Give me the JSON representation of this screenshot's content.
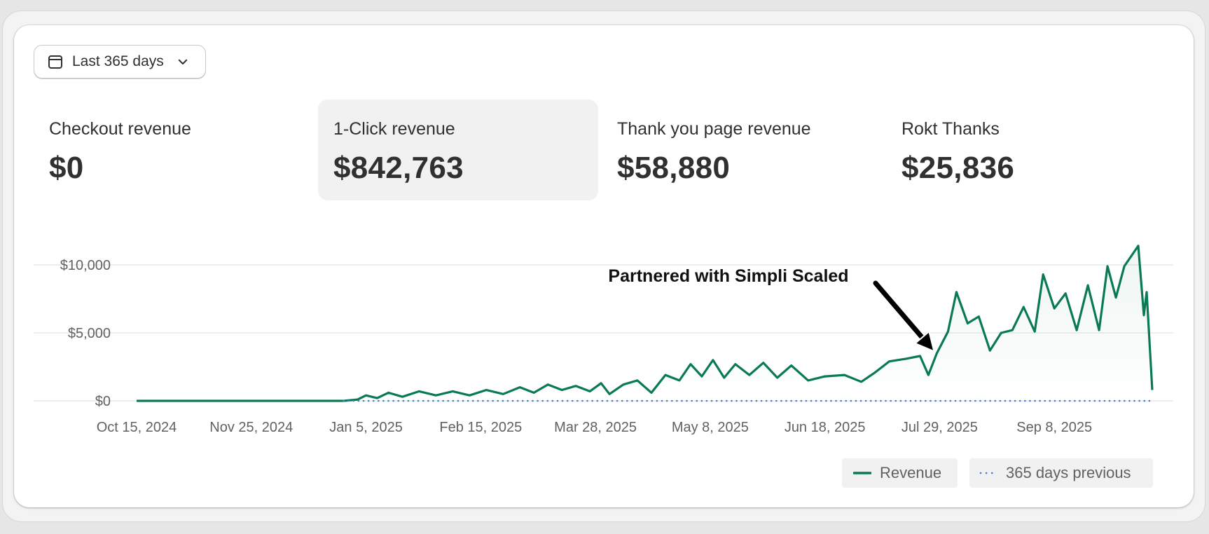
{
  "date_range": {
    "label": "Last 365 days",
    "calendar_icon": "calendar-icon",
    "chevron_icon": "chevron-down-icon"
  },
  "metrics": [
    {
      "label": "Checkout revenue",
      "value": "$0"
    },
    {
      "label": "1-Click revenue",
      "value": "$842,763",
      "selected": true
    },
    {
      "label": "Thank you page revenue",
      "value": "$58,880"
    },
    {
      "label": "Rokt Thanks",
      "value": "$25,836"
    }
  ],
  "legend": {
    "revenue_label": "Revenue",
    "previous_label": "365 days previous"
  },
  "colors": {
    "revenue": "#0a7a55",
    "previous": "#4a7bd8",
    "grid": "#e3e3e3",
    "axis_text": "#616161"
  },
  "chart_data": {
    "type": "line",
    "title": "",
    "xlabel": "",
    "ylabel": "",
    "x_range": [
      "2024-10-15",
      "2025-10-13"
    ],
    "ylim": [
      0,
      11500
    ],
    "y_ticks": [
      {
        "value": 0,
        "label": "$0"
      },
      {
        "value": 5000,
        "label": "$5,000"
      },
      {
        "value": 10000,
        "label": "$10,000"
      }
    ],
    "x_ticks": [
      {
        "date": "2024-10-15",
        "label": "Oct 15, 2024"
      },
      {
        "date": "2024-11-25",
        "label": "Nov 25, 2024"
      },
      {
        "date": "2025-01-05",
        "label": "Jan 5, 2025"
      },
      {
        "date": "2025-02-15",
        "label": "Feb 15, 2025"
      },
      {
        "date": "2025-03-28",
        "label": "Mar 28, 2025"
      },
      {
        "date": "2025-05-08",
        "label": "May 8, 2025"
      },
      {
        "date": "2025-06-18",
        "label": "Jun 18, 2025"
      },
      {
        "date": "2025-07-29",
        "label": "Jul 29, 2025"
      },
      {
        "date": "2025-09-08",
        "label": "Sep 8, 2025"
      }
    ],
    "grid": true,
    "legend_position": "bottom-right",
    "series": [
      {
        "name": "Revenue",
        "style": "solid",
        "points": [
          [
            "2024-10-15",
            0
          ],
          [
            "2024-12-28",
            0
          ],
          [
            "2025-01-02",
            100
          ],
          [
            "2025-01-05",
            400
          ],
          [
            "2025-01-09",
            200
          ],
          [
            "2025-01-13",
            600
          ],
          [
            "2025-01-18",
            300
          ],
          [
            "2025-01-24",
            700
          ],
          [
            "2025-01-30",
            400
          ],
          [
            "2025-02-05",
            700
          ],
          [
            "2025-02-11",
            400
          ],
          [
            "2025-02-17",
            800
          ],
          [
            "2025-02-23",
            500
          ],
          [
            "2025-03-01",
            1000
          ],
          [
            "2025-03-06",
            600
          ],
          [
            "2025-03-11",
            1200
          ],
          [
            "2025-03-16",
            800
          ],
          [
            "2025-03-21",
            1100
          ],
          [
            "2025-03-26",
            700
          ],
          [
            "2025-03-30",
            1300
          ],
          [
            "2025-04-02",
            500
          ],
          [
            "2025-04-07",
            1200
          ],
          [
            "2025-04-12",
            1500
          ],
          [
            "2025-04-17",
            600
          ],
          [
            "2025-04-22",
            1900
          ],
          [
            "2025-04-27",
            1500
          ],
          [
            "2025-05-01",
            2700
          ],
          [
            "2025-05-05",
            1800
          ],
          [
            "2025-05-09",
            3000
          ],
          [
            "2025-05-13",
            1700
          ],
          [
            "2025-05-17",
            2700
          ],
          [
            "2025-05-22",
            1900
          ],
          [
            "2025-05-27",
            2800
          ],
          [
            "2025-06-01",
            1700
          ],
          [
            "2025-06-06",
            2600
          ],
          [
            "2025-06-12",
            1500
          ],
          [
            "2025-06-18",
            1800
          ],
          [
            "2025-06-25",
            1900
          ],
          [
            "2025-07-01",
            1400
          ],
          [
            "2025-07-06",
            2100
          ],
          [
            "2025-07-11",
            2900
          ],
          [
            "2025-07-17",
            3100
          ],
          [
            "2025-07-22",
            3300
          ],
          [
            "2025-07-25",
            1900
          ],
          [
            "2025-07-28",
            3500
          ],
          [
            "2025-08-01",
            5100
          ],
          [
            "2025-08-04",
            8000
          ],
          [
            "2025-08-08",
            5700
          ],
          [
            "2025-08-12",
            6200
          ],
          [
            "2025-08-16",
            3700
          ],
          [
            "2025-08-20",
            5000
          ],
          [
            "2025-08-24",
            5200
          ],
          [
            "2025-08-28",
            6900
          ],
          [
            "2025-09-01",
            5100
          ],
          [
            "2025-09-04",
            9300
          ],
          [
            "2025-09-08",
            6800
          ],
          [
            "2025-09-12",
            7900
          ],
          [
            "2025-09-16",
            5200
          ],
          [
            "2025-09-20",
            8500
          ],
          [
            "2025-09-24",
            5200
          ],
          [
            "2025-09-27",
            9900
          ],
          [
            "2025-09-30",
            7600
          ],
          [
            "2025-10-03",
            9900
          ],
          [
            "2025-10-06",
            10800
          ],
          [
            "2025-10-08",
            11400
          ],
          [
            "2025-10-10",
            6300
          ],
          [
            "2025-10-11",
            8000
          ],
          [
            "2025-10-13",
            800
          ]
        ]
      },
      {
        "name": "365 days previous",
        "style": "dotted",
        "points": [
          [
            "2024-12-28",
            0
          ],
          [
            "2025-10-13",
            0
          ]
        ]
      }
    ],
    "annotations": [
      {
        "text": "Partnered with Simpli Scaled",
        "arrow_to": [
          "2025-07-26",
          2200
        ]
      }
    ]
  }
}
